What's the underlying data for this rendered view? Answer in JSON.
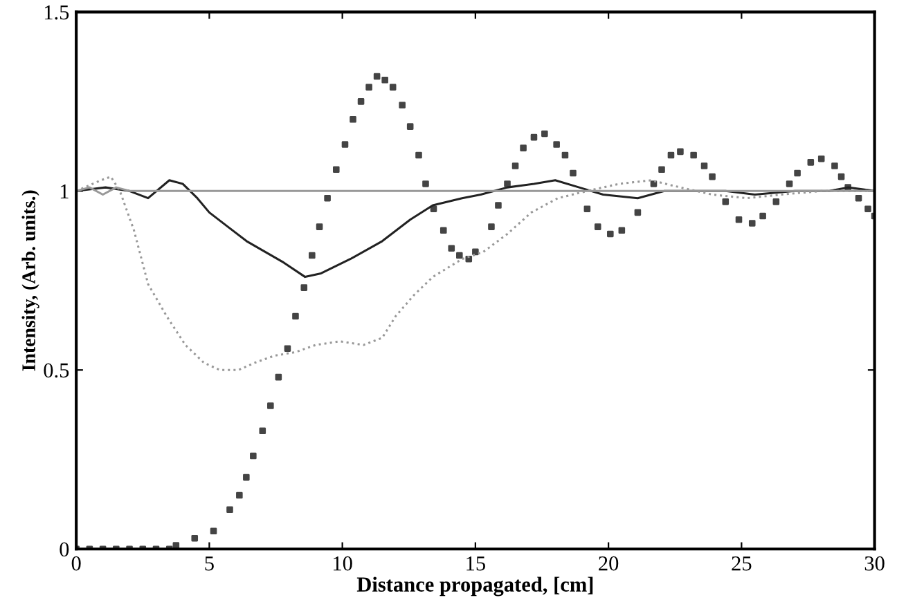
{
  "chart_data": {
    "type": "line",
    "xlabel": "Distance propagated, [cm]",
    "ylabel": "Intensity, (Arb. units.)",
    "xlim": [
      0,
      30
    ],
    "ylim": [
      0,
      1.5
    ],
    "xticks": [
      0,
      5,
      10,
      15,
      20,
      25,
      30
    ],
    "yticks": [
      0,
      0.5,
      1,
      1.5
    ],
    "grid": false,
    "legend": false,
    "series": [
      {
        "type": "scatter",
        "marker": "square",
        "color": "#444444",
        "x": [
          0,
          0.5,
          1,
          1.5,
          2,
          2.5,
          3,
          3.5,
          3.75,
          4.45,
          5.16,
          5.77,
          6.13,
          6.39,
          6.65,
          7.0,
          7.3,
          7.6,
          7.94,
          8.24,
          8.56,
          8.86,
          9.14,
          9.44,
          9.77,
          10.1,
          10.4,
          10.7,
          11.0,
          11.3,
          11.6,
          11.9,
          12.25,
          12.55,
          12.87,
          13.13,
          13.43,
          13.8,
          14.1,
          14.4,
          14.75,
          15.0,
          15.6,
          15.86,
          16.2,
          16.5,
          16.8,
          17.2,
          17.6,
          18.05,
          18.37,
          18.67,
          19.2,
          19.6,
          20.07,
          20.5,
          21.1,
          21.7,
          22.0,
          22.35,
          22.7,
          23.2,
          23.6,
          23.9,
          24.4,
          24.9,
          25.4,
          25.8,
          26.3,
          26.8,
          27.1,
          27.6,
          28.0,
          28.5,
          28.75,
          29.0,
          29.4,
          29.75,
          30.0
        ],
        "values": [
          0,
          0,
          0,
          0,
          0,
          0,
          0,
          0,
          0.01,
          0.03,
          0.05,
          0.11,
          0.15,
          0.2,
          0.26,
          0.33,
          0.4,
          0.48,
          0.56,
          0.65,
          0.73,
          0.82,
          0.9,
          0.98,
          1.06,
          1.13,
          1.2,
          1.25,
          1.29,
          1.32,
          1.31,
          1.29,
          1.24,
          1.18,
          1.1,
          1.02,
          0.95,
          0.89,
          0.84,
          0.82,
          0.81,
          0.83,
          0.9,
          0.96,
          1.02,
          1.07,
          1.12,
          1.15,
          1.16,
          1.13,
          1.1,
          1.05,
          0.95,
          0.9,
          0.88,
          0.89,
          0.94,
          1.02,
          1.06,
          1.1,
          1.11,
          1.1,
          1.07,
          1.04,
          0.97,
          0.92,
          0.91,
          0.93,
          0.97,
          1.02,
          1.05,
          1.08,
          1.09,
          1.07,
          1.04,
          1.01,
          0.98,
          0.95,
          0.93
        ]
      },
      {
        "line_style": "solid",
        "color": "#222222",
        "x": [
          0,
          1.1,
          2.0,
          2.7,
          3.5,
          4.0,
          4.55,
          5.0,
          5.7,
          6.4,
          7.1,
          7.8,
          8.6,
          9.2,
          10.3,
          11.5,
          12.55,
          13.4,
          14.5,
          15.2,
          16.2,
          17.2,
          18.0,
          18.9,
          19.8,
          21.1,
          22.1,
          23.4,
          24.4,
          25.5,
          27.0,
          28.3,
          29.0,
          30.0
        ],
        "values": [
          1.0,
          1.01,
          1.0,
          0.98,
          1.03,
          1.02,
          0.98,
          0.94,
          0.9,
          0.86,
          0.83,
          0.8,
          0.76,
          0.77,
          0.81,
          0.86,
          0.92,
          0.96,
          0.98,
          0.99,
          1.01,
          1.02,
          1.03,
          1.01,
          0.99,
          0.98,
          1.0,
          1.0,
          1.0,
          0.99,
          1.0,
          1.0,
          1.01,
          1.0
        ]
      },
      {
        "line_style": "solid",
        "color": "#999999",
        "x": [
          0,
          0.5,
          1,
          1.5,
          2,
          3,
          5,
          10,
          15,
          20,
          25,
          30
        ],
        "values": [
          1.0,
          1.01,
          0.99,
          1.01,
          1.0,
          1.0,
          1.0,
          1.0,
          1.0,
          1.0,
          1.0,
          1.0
        ]
      },
      {
        "line_style": "dotted",
        "color": "#999999",
        "x": [
          0,
          0.93,
          1.3,
          1.64,
          2.17,
          2.7,
          3.4,
          4.1,
          4.8,
          5.4,
          6.1,
          6.7,
          7.45,
          8.24,
          9.0,
          9.9,
          10.8,
          11.5,
          12.0,
          12.7,
          13.4,
          14.5,
          15.3,
          16.2,
          17.1,
          18.1,
          19.2,
          20.4,
          21.6,
          22.7,
          23.9,
          25.2,
          26.5,
          28.0,
          29.0,
          30.0
        ],
        "values": [
          1.0,
          1.03,
          1.04,
          1.0,
          0.89,
          0.74,
          0.65,
          0.57,
          0.52,
          0.5,
          0.5,
          0.52,
          0.54,
          0.55,
          0.57,
          0.58,
          0.57,
          0.59,
          0.65,
          0.71,
          0.76,
          0.81,
          0.83,
          0.88,
          0.94,
          0.98,
          1.0,
          1.02,
          1.03,
          1.01,
          0.99,
          0.98,
          0.99,
          1.0,
          1.0,
          1.0
        ]
      }
    ]
  }
}
